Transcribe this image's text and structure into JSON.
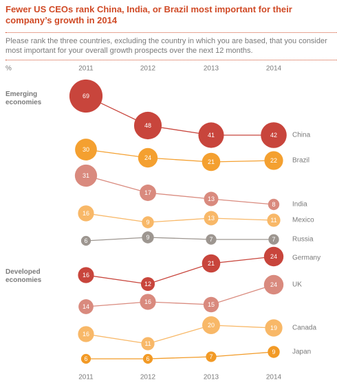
{
  "chart_data": {
    "type": "bump",
    "title": "Fewer US CEOs rank China, India, or Brazil most important for their company’s growth in 2014",
    "subtitle": "Please rank the three countries, excluding the country in which you are based, that you consider most important for your overall growth prospects over the next 12 months.",
    "unit_label": "%",
    "groups": [
      "Emerging economies",
      "Developed economies"
    ],
    "categories": [
      "2011",
      "2012",
      "2013",
      "2014"
    ],
    "series": [
      {
        "name": "China",
        "color": "#c8453c",
        "values": [
          69,
          48,
          41,
          42
        ]
      },
      {
        "name": "Brazil",
        "color": "#f4a030",
        "values": [
          30,
          24,
          21,
          22
        ]
      },
      {
        "name": "India",
        "color": "#d98a7e",
        "values": [
          31,
          17,
          13,
          8
        ]
      },
      {
        "name": "Mexico",
        "color": "#f8b868",
        "values": [
          16,
          9,
          13,
          11
        ]
      },
      {
        "name": "Russia",
        "color": "#9d9690",
        "values": [
          6,
          9,
          7,
          7
        ]
      },
      {
        "name": "Germany",
        "color": "#c8453c",
        "values": [
          16,
          12,
          21,
          24
        ]
      },
      {
        "name": "UK",
        "color": "#d98a7e",
        "values": [
          14,
          16,
          15,
          24
        ]
      },
      {
        "name": "Canada",
        "color": "#f8b868",
        "values": [
          16,
          11,
          20,
          19
        ]
      },
      {
        "name": "Japan",
        "color": "#f29a26",
        "values": [
          6,
          6,
          7,
          9
        ]
      }
    ]
  }
}
